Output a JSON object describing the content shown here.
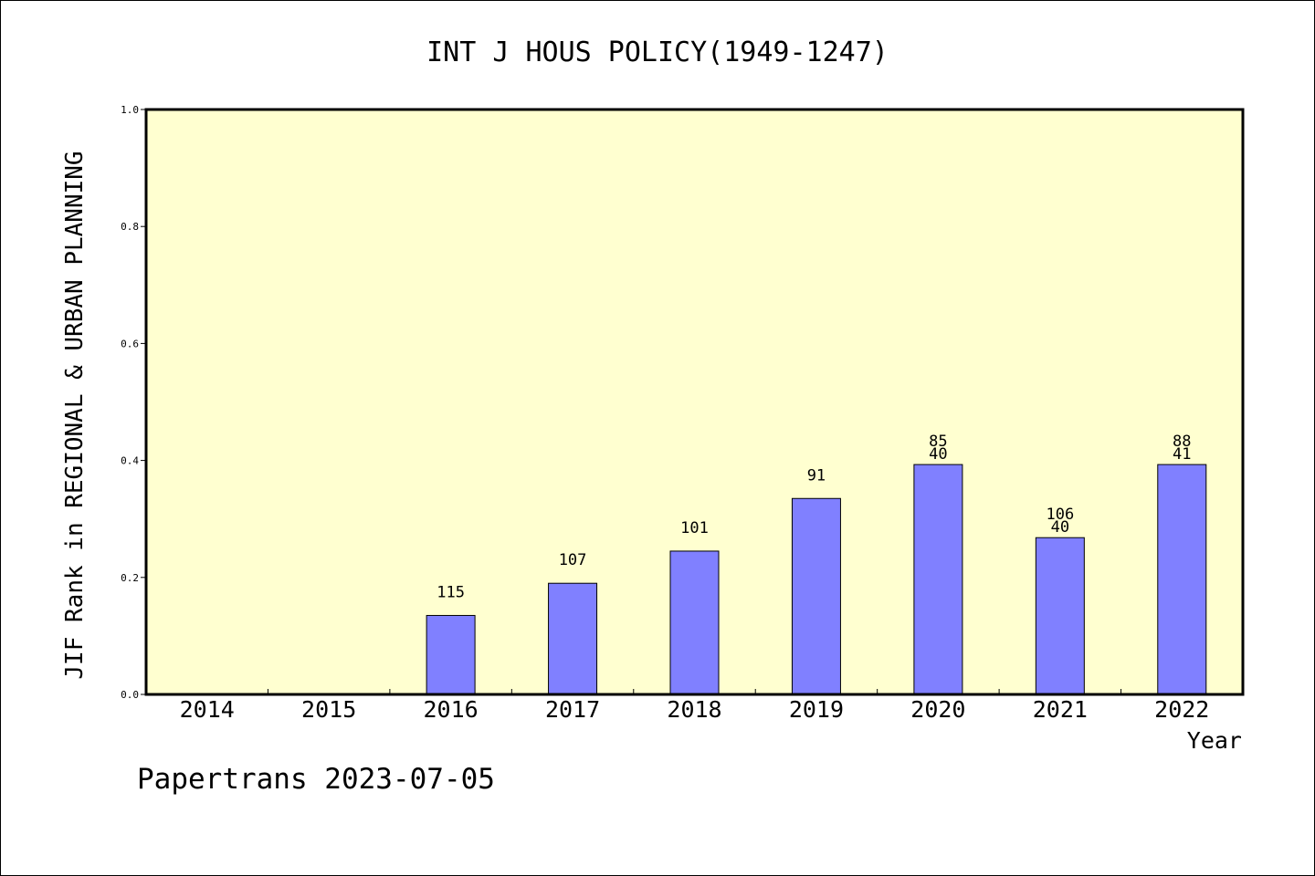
{
  "chart_data": {
    "type": "bar",
    "title": "INT J HOUS POLICY(1949-1247)",
    "xlabel": "Year",
    "ylabel": "JIF Rank in REGIONAL & URBAN PLANNING",
    "ylim": [
      0,
      1.0
    ],
    "yticks": [
      "0.0",
      "0.2",
      "0.4",
      "0.6",
      "0.8",
      "1.0"
    ],
    "categories": [
      "2014",
      "2015",
      "2016",
      "2017",
      "2018",
      "2019",
      "2020",
      "2021",
      "2022"
    ],
    "values": [
      null,
      null,
      0.135,
      0.19,
      0.245,
      0.335,
      0.393,
      0.268,
      0.393
    ],
    "bar_labels": [
      [],
      [],
      [
        "115"
      ],
      [
        "107"
      ],
      [
        "101"
      ],
      [
        "91"
      ],
      [
        "85",
        "40"
      ],
      [
        "106",
        "40"
      ],
      [
        "88",
        "41"
      ]
    ],
    "grid": false,
    "colors": {
      "plot_background": "#FFFFD0",
      "bar_fill": "#8080FF",
      "bar_stroke": "#000000"
    }
  },
  "footer": {
    "text": "Papertrans 2023-07-05"
  }
}
